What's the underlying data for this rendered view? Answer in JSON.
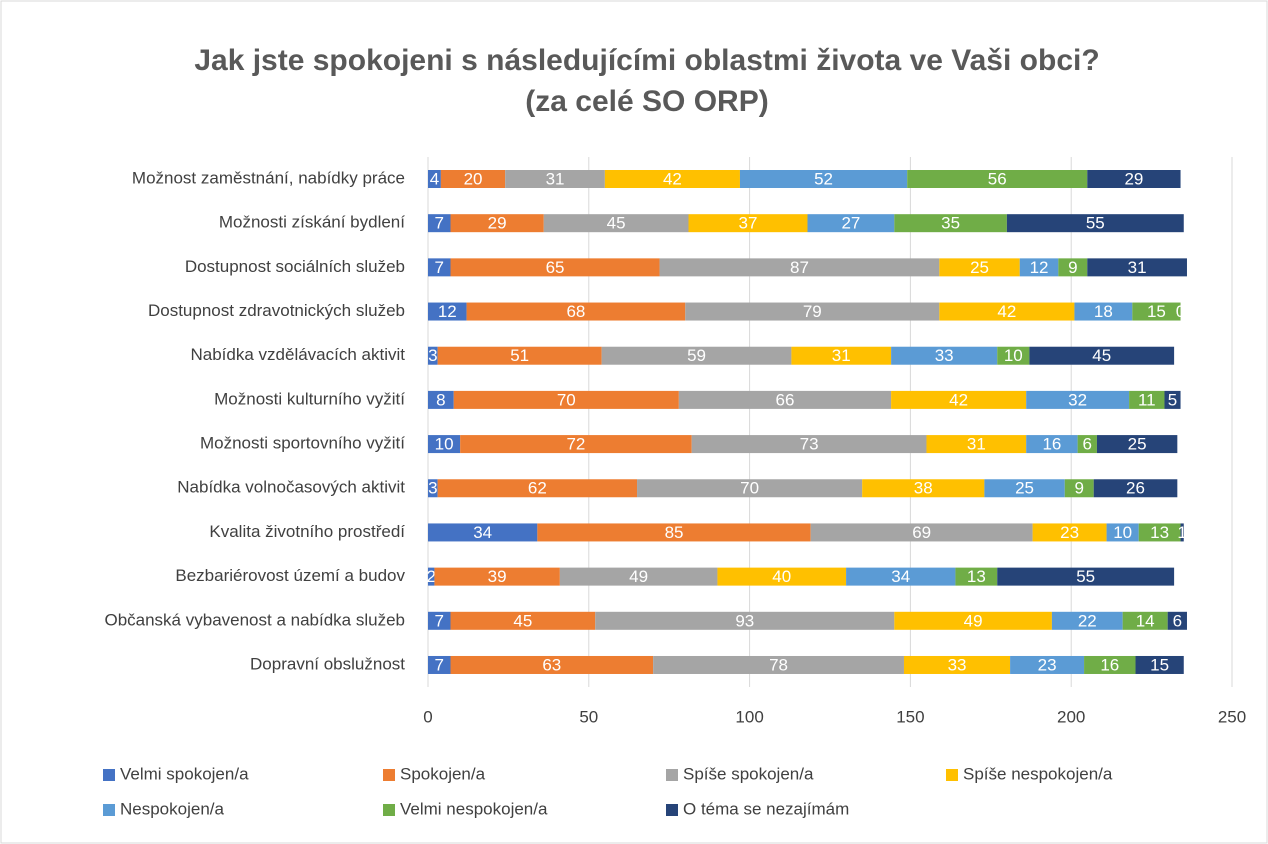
{
  "chart_data": {
    "type": "stacked-bar-horizontal",
    "title": "Jak jste spokojeni s následujícími oblastmi života ve Vaši obci?",
    "subtitle": "(za celé SO ORP)",
    "categories": [
      "Možnost zaměstnání, nabídky práce",
      "Možnosti získání bydlení",
      "Dostupnost sociálních služeb",
      "Dostupnost zdravotnických služeb",
      "Nabídka vzdělávacích aktivit",
      "Možnosti kulturního vyžití",
      "Možnosti sportovního vyžití",
      "Nabídka volnočasových aktivit",
      "Kvalita životního prostředí",
      "Bezbariérovost území a budov",
      "Občanská vybavenost a nabídka služeb",
      "Dopravní obslužnost"
    ],
    "series": [
      {
        "name": "Velmi spokojen/a",
        "color": "#4472c4",
        "values": [
          4,
          7,
          7,
          12,
          3,
          8,
          10,
          3,
          34,
          2,
          7,
          7
        ]
      },
      {
        "name": "Spokojen/a",
        "color": "#ed7d31",
        "values": [
          20,
          29,
          65,
          68,
          51,
          70,
          72,
          62,
          85,
          39,
          45,
          63
        ]
      },
      {
        "name": "Spíše spokojen/a",
        "color": "#a5a5a5",
        "values": [
          31,
          45,
          87,
          79,
          59,
          66,
          73,
          70,
          69,
          49,
          93,
          78
        ]
      },
      {
        "name": "Spíše nespokojen/a",
        "color": "#ffc000",
        "values": [
          42,
          37,
          25,
          42,
          31,
          42,
          31,
          38,
          23,
          40,
          49,
          33
        ]
      },
      {
        "name": "Nespokojen/a",
        "color": "#5b9bd5",
        "values": [
          52,
          27,
          12,
          18,
          33,
          32,
          16,
          25,
          10,
          34,
          22,
          23
        ]
      },
      {
        "name": "Velmi nespokojen/a",
        "color": "#70ad47",
        "values": [
          56,
          35,
          9,
          15,
          10,
          11,
          6,
          9,
          13,
          13,
          14,
          16
        ]
      },
      {
        "name": "O téma se nezajímám",
        "color": "#264478",
        "values": [
          29,
          55,
          31,
          0,
          45,
          5,
          25,
          26,
          1,
          55,
          6,
          15
        ]
      }
    ],
    "xlim": [
      0,
      250
    ],
    "xticks": [
      0,
      50,
      100,
      150,
      200,
      250
    ],
    "grid": true,
    "legend": "bottom"
  }
}
